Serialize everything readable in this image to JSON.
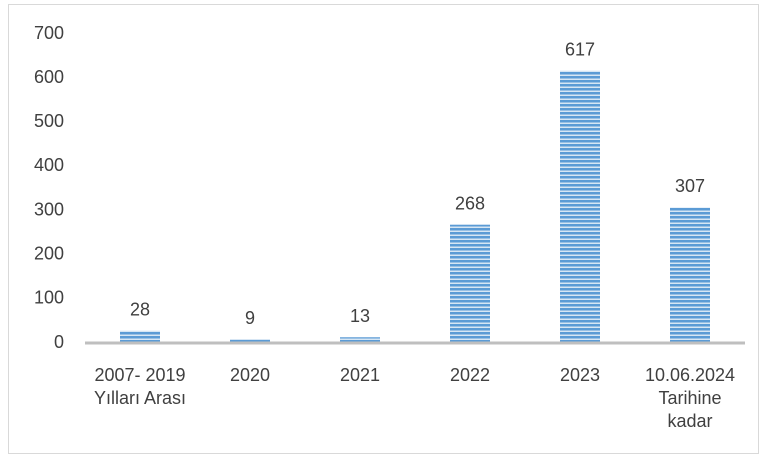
{
  "chart_data": {
    "type": "bar",
    "categories": [
      [
        "2007- 2019",
        "Yılları Arası"
      ],
      [
        "2020"
      ],
      [
        "2021"
      ],
      [
        "2022"
      ],
      [
        "2023"
      ],
      [
        "10.06.2024",
        "Tarihine",
        "kadar"
      ]
    ],
    "values": [
      28,
      9,
      13,
      268,
      617,
      307
    ],
    "color": "#5b9bd5",
    "ylim": [
      0,
      700
    ],
    "yticks": [
      0,
      100,
      200,
      300,
      400,
      500,
      600,
      700
    ],
    "grid": false
  }
}
